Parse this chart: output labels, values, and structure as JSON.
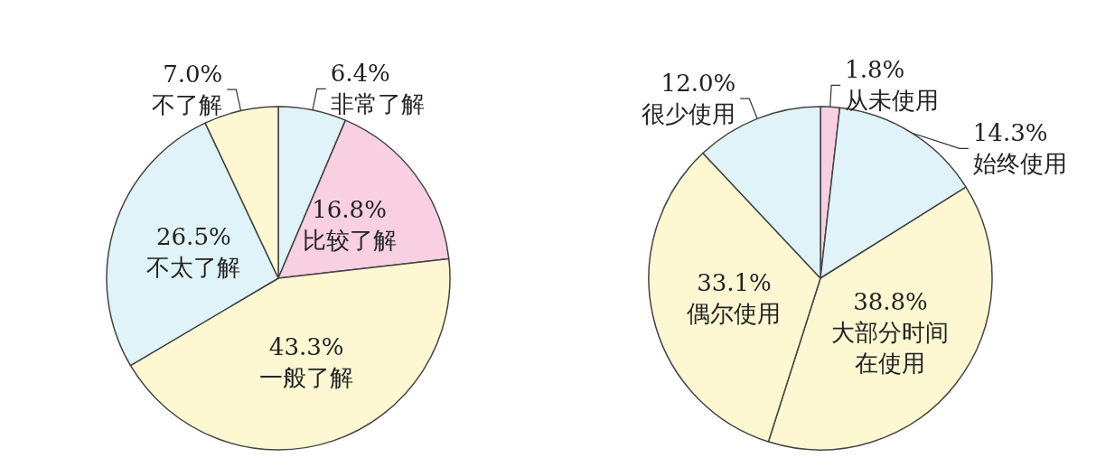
{
  "chart_data": [
    {
      "type": "pie",
      "categories": [
        "非常了解",
        "比较了解",
        "一般了解",
        "不太了解",
        "不了解"
      ],
      "values": [
        6.4,
        16.8,
        43.3,
        26.5,
        7.0
      ],
      "value_labels": [
        "6.4%",
        "16.8%",
        "43.3%",
        "26.5%",
        "7.0%"
      ],
      "colors": [
        "#dff3f8",
        "#f8d0e2",
        "#fdf8d2",
        "#dff3f8",
        "#fdf8d2"
      ],
      "legend": false
    },
    {
      "type": "pie",
      "categories": [
        "从未使用",
        "始终使用",
        "大部分时间在使用",
        "偶尔使用",
        "很少使用"
      ],
      "values": [
        1.8,
        14.3,
        38.8,
        33.1,
        12.0
      ],
      "value_labels": [
        "1.8%",
        "14.3%",
        "38.8%",
        "33.1%",
        "12.0%"
      ],
      "colors": [
        "#f8d0e2",
        "#dff3f8",
        "#fdf8d2",
        "#fdf8d2",
        "#dff3f8"
      ],
      "legend": false
    }
  ]
}
